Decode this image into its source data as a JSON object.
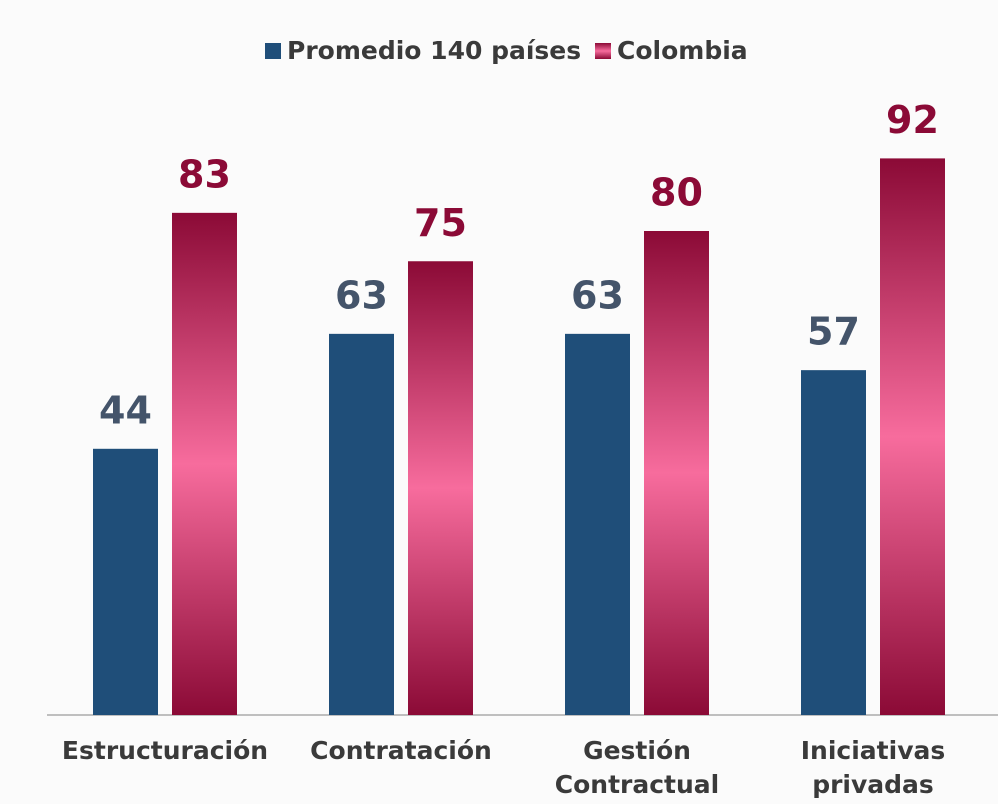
{
  "chart_data": {
    "type": "bar",
    "categories": [
      "Estructuración",
      "Contratación",
      "Gestión Contractual",
      "Iniciativas privadas"
    ],
    "series": [
      {
        "name": "Promedio 140 países",
        "color": "#1f4e79",
        "label_color": "#44546a",
        "values": [
          44,
          63,
          63,
          57
        ]
      },
      {
        "name": "Colombia",
        "color": "#e8578a",
        "label_color": "#8b0a36",
        "values": [
          83,
          75,
          80,
          92
        ]
      }
    ],
    "ylim": [
      0,
      100
    ],
    "grid": false,
    "legend": "top"
  }
}
